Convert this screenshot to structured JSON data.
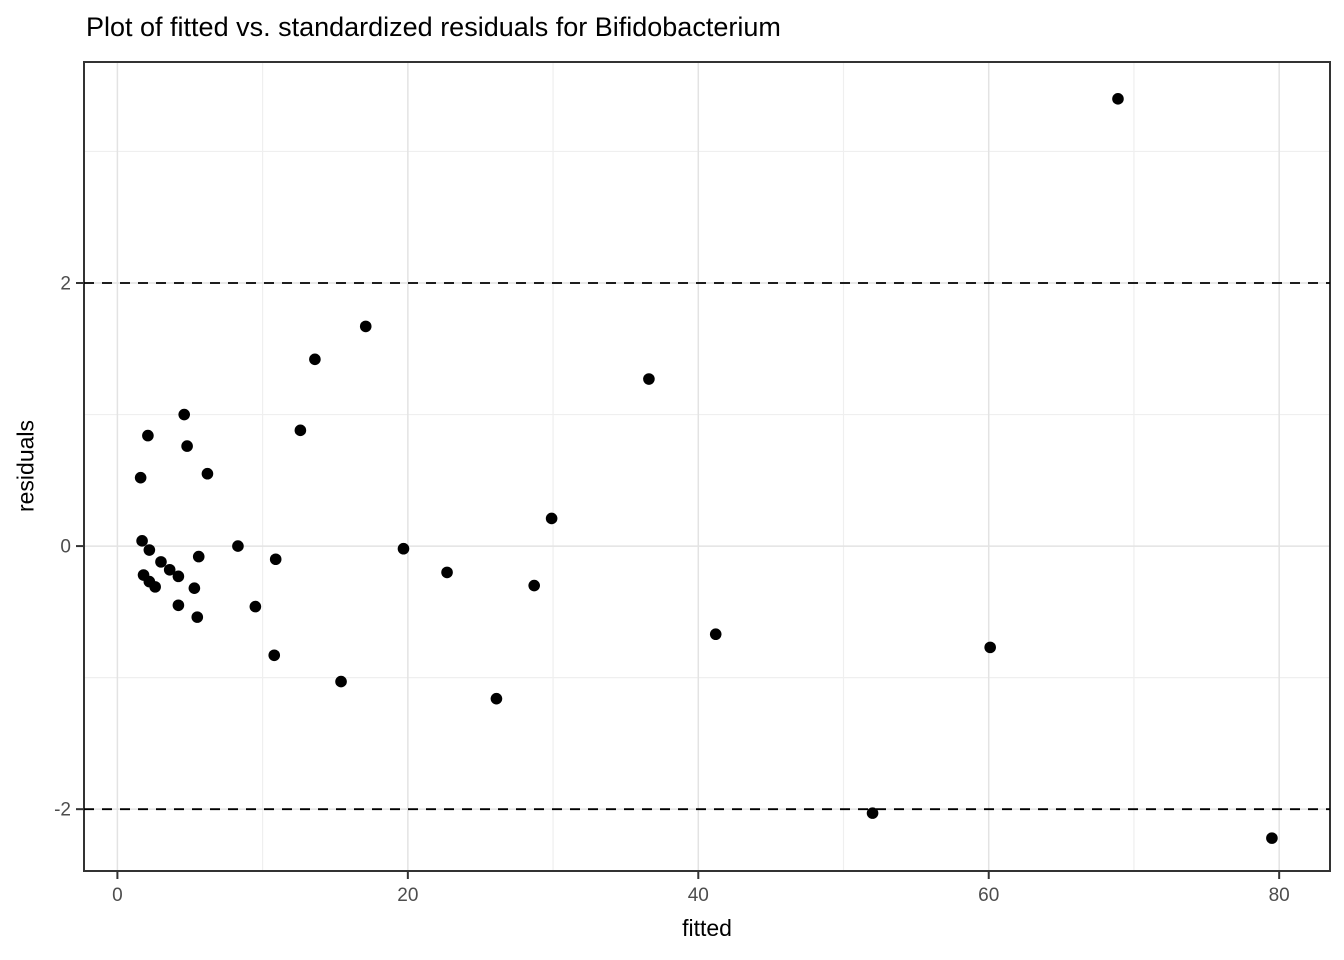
{
  "page": {
    "title": "Plot of fitted vs. standardized residuals for Bifidobacterium"
  },
  "chart_data": {
    "type": "scatter",
    "title": "Plot of fitted vs. standardized residuals for Bifidobacterium",
    "xlabel": "fitted",
    "ylabel": "residuals",
    "x_range": [
      -2.3,
      83.5
    ],
    "y_range": [
      -2.47,
      3.68
    ],
    "x_major_ticks": [
      0,
      20,
      40,
      60,
      80
    ],
    "x_minor_ticks": [
      10,
      30,
      50,
      70
    ],
    "y_major_ticks": [
      -2,
      0,
      2
    ],
    "y_minor_ticks": [
      -1,
      1,
      3
    ],
    "reference_lines_y": [
      2,
      -2
    ],
    "grid": true,
    "legend_position": "none",
    "points": [
      [
        1.6,
        0.52
      ],
      [
        2.1,
        0.84
      ],
      [
        4.6,
        1.0
      ],
      [
        4.8,
        0.76
      ],
      [
        6.2,
        0.55
      ],
      [
        12.6,
        0.88
      ],
      [
        13.6,
        1.42
      ],
      [
        17.1,
        1.67
      ],
      [
        36.6,
        1.27
      ],
      [
        1.7,
        0.04
      ],
      [
        2.2,
        -0.03
      ],
      [
        3.0,
        -0.12
      ],
      [
        3.6,
        -0.18
      ],
      [
        4.2,
        -0.23
      ],
      [
        5.6,
        -0.08
      ],
      [
        1.8,
        -0.22
      ],
      [
        2.2,
        -0.27
      ],
      [
        2.6,
        -0.31
      ],
      [
        5.3,
        -0.32
      ],
      [
        4.2,
        -0.45
      ],
      [
        5.5,
        -0.54
      ],
      [
        8.3,
        0.0
      ],
      [
        10.9,
        -0.1
      ],
      [
        9.5,
        -0.46
      ],
      [
        10.8,
        -0.83
      ],
      [
        15.4,
        -1.03
      ],
      [
        19.7,
        -0.02
      ],
      [
        22.7,
        -0.2
      ],
      [
        29.9,
        0.21
      ],
      [
        28.7,
        -0.3
      ],
      [
        26.1,
        -1.16
      ],
      [
        41.2,
        -0.67
      ],
      [
        60.1,
        -0.77
      ],
      [
        52.0,
        -2.03
      ],
      [
        68.9,
        3.4
      ],
      [
        79.5,
        -2.22
      ]
    ]
  },
  "colors": {
    "point": "#000000",
    "grid_major": "#e3e3e3",
    "grid_minor": "#efefef",
    "panel_border": "#333333",
    "tick_mark": "#333333",
    "tick_label": "#4d4d4d",
    "reference_line": "#000000",
    "background": "#ffffff"
  }
}
